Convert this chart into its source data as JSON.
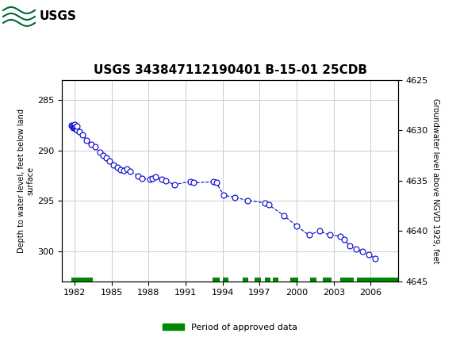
{
  "title": "USGS 343847112190401 B-15-01 25CDB",
  "ylabel_left": "Depth to water level, feet below land\nsurface",
  "ylabel_right": "Groundwater level above NGVD 1929, feet",
  "ylim_left": [
    283,
    303
  ],
  "ylim_right": [
    4625,
    4645
  ],
  "xlim": [
    1981.0,
    2008.2
  ],
  "xticks": [
    1982,
    1985,
    1988,
    1991,
    1994,
    1997,
    2000,
    2003,
    2006
  ],
  "yticks_left": [
    285,
    290,
    295,
    300
  ],
  "yticks_right": [
    4625,
    4630,
    4635,
    4640,
    4645
  ],
  "data_x": [
    1981.75,
    1981.82,
    1981.87,
    1981.92,
    1981.96,
    1982.0,
    1982.04,
    1982.08,
    1982.13,
    1982.17,
    1982.21,
    1982.42,
    1982.63,
    1983.0,
    1983.33,
    1983.67,
    1984.04,
    1984.33,
    1984.58,
    1984.83,
    1985.17,
    1985.5,
    1985.75,
    1986.0,
    1986.25,
    1986.5,
    1987.17,
    1987.5,
    1988.08,
    1988.33,
    1988.58,
    1989.08,
    1989.42,
    1990.08,
    1991.42,
    1991.67,
    1993.25,
    1993.5,
    1994.08,
    1995.0,
    1996.0,
    1997.42,
    1997.75,
    1999.0,
    2000.0,
    2001.0,
    2001.83,
    2002.67,
    2003.5,
    2003.83,
    2004.33,
    2004.83,
    2005.33,
    2005.83,
    2006.33
  ],
  "data_y": [
    287.5,
    287.6,
    287.7,
    287.55,
    287.65,
    287.75,
    287.45,
    287.65,
    287.85,
    288.0,
    287.6,
    288.1,
    288.4,
    289.0,
    289.35,
    289.65,
    290.15,
    290.45,
    290.7,
    291.0,
    291.4,
    291.65,
    291.9,
    292.0,
    291.8,
    292.1,
    292.5,
    292.8,
    292.85,
    292.75,
    292.65,
    292.85,
    293.0,
    293.4,
    293.05,
    293.2,
    293.1,
    293.2,
    294.45,
    294.65,
    294.95,
    295.2,
    295.4,
    296.5,
    297.5,
    298.4,
    298.0,
    298.4,
    298.5,
    298.85,
    299.5,
    299.8,
    300.0,
    300.35,
    300.7
  ],
  "green_bars": [
    [
      1981.75,
      1983.5
    ],
    [
      1993.2,
      1993.75
    ],
    [
      1994.0,
      1994.5
    ],
    [
      1995.6,
      1996.1
    ],
    [
      1996.6,
      1997.1
    ],
    [
      1997.4,
      1997.85
    ],
    [
      1998.1,
      1998.55
    ],
    [
      1999.5,
      2000.1
    ],
    [
      2001.1,
      2001.6
    ],
    [
      2002.1,
      2002.85
    ],
    [
      2003.5,
      2004.6
    ],
    [
      2004.85,
      2008.2
    ]
  ],
  "line_color": "#0000CC",
  "marker_color": "#0000CC",
  "marker_size": 5,
  "line_style": "--",
  "line_width": 0.8,
  "grid_color": "#cccccc",
  "bg_color": "#ffffff",
  "header_color": "#006633",
  "legend_label": "Period of approved data",
  "legend_color": "#008800"
}
